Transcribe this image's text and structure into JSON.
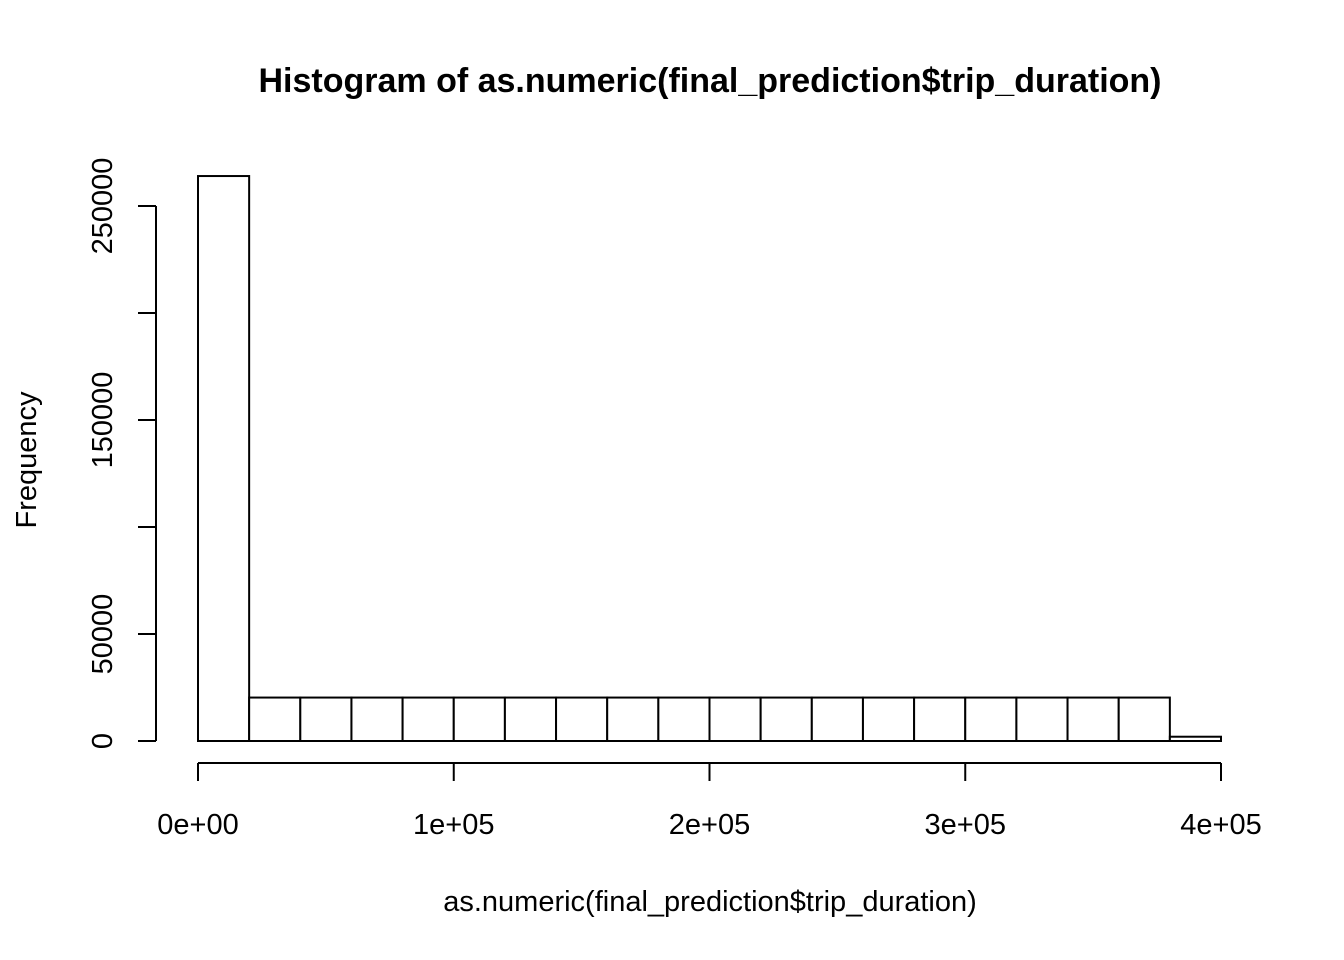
{
  "chart_data": {
    "type": "bar",
    "title": "Histogram of as.numeric(final_prediction$trip_duration)",
    "xlabel": "as.numeric(final_prediction$trip_duration)",
    "ylabel": "Frequency",
    "xlim": [
      0,
      400000
    ],
    "ylim": [
      0,
      260000
    ],
    "bin_width": 20000,
    "bins": [
      {
        "start": 0,
        "end": 20000,
        "count": 264000
      },
      {
        "start": 20000,
        "end": 40000,
        "count": 20300
      },
      {
        "start": 40000,
        "end": 60000,
        "count": 20300
      },
      {
        "start": 60000,
        "end": 80000,
        "count": 20300
      },
      {
        "start": 80000,
        "end": 100000,
        "count": 20300
      },
      {
        "start": 100000,
        "end": 120000,
        "count": 20300
      },
      {
        "start": 120000,
        "end": 140000,
        "count": 20300
      },
      {
        "start": 140000,
        "end": 160000,
        "count": 20300
      },
      {
        "start": 160000,
        "end": 180000,
        "count": 20300
      },
      {
        "start": 180000,
        "end": 200000,
        "count": 20300
      },
      {
        "start": 200000,
        "end": 220000,
        "count": 20300
      },
      {
        "start": 220000,
        "end": 240000,
        "count": 20300
      },
      {
        "start": 240000,
        "end": 260000,
        "count": 20300
      },
      {
        "start": 260000,
        "end": 280000,
        "count": 20300
      },
      {
        "start": 280000,
        "end": 300000,
        "count": 20300
      },
      {
        "start": 300000,
        "end": 320000,
        "count": 20300
      },
      {
        "start": 320000,
        "end": 340000,
        "count": 20300
      },
      {
        "start": 340000,
        "end": 360000,
        "count": 20300
      },
      {
        "start": 360000,
        "end": 380000,
        "count": 20300
      },
      {
        "start": 380000,
        "end": 400000,
        "count": 2000
      }
    ],
    "x_ticks": [
      {
        "value": 0,
        "label": "0e+00"
      },
      {
        "value": 100000,
        "label": "1e+05"
      },
      {
        "value": 200000,
        "label": "2e+05"
      },
      {
        "value": 300000,
        "label": "3e+05"
      },
      {
        "value": 400000,
        "label": "4e+05"
      }
    ],
    "y_ticks": [
      {
        "value": 0,
        "label": "0"
      },
      {
        "value": 50000,
        "label": "50000"
      },
      {
        "value": 100000,
        "label": ""
      },
      {
        "value": 150000,
        "label": "150000"
      },
      {
        "value": 200000,
        "label": ""
      },
      {
        "value": 250000,
        "label": "250000"
      }
    ],
    "grid": false,
    "legend": "none"
  }
}
